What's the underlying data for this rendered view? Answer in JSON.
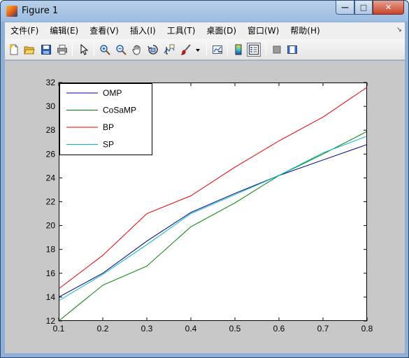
{
  "window": {
    "title": "Figure 1",
    "min_glyph": "—",
    "max_glyph": "□",
    "close_glyph": "✕"
  },
  "menubar": {
    "items": [
      {
        "label": "文件(F)"
      },
      {
        "label": "编辑(E)"
      },
      {
        "label": "查看(V)"
      },
      {
        "label": "插入(I)"
      },
      {
        "label": "工具(T)"
      },
      {
        "label": "桌面(D)"
      },
      {
        "label": "窗口(W)"
      },
      {
        "label": "帮助(H)"
      }
    ],
    "overflow_glyph": "↘"
  },
  "toolbar": {
    "buttons": [
      {
        "icon": "new-figure-icon"
      },
      {
        "icon": "open-file-icon"
      },
      {
        "icon": "save-icon"
      },
      {
        "icon": "print-icon"
      },
      {
        "icon": "edit-plot-arrow-icon"
      },
      {
        "icon": "zoom-in-icon"
      },
      {
        "icon": "zoom-out-icon"
      },
      {
        "icon": "pan-hand-icon"
      },
      {
        "icon": "rotate-3d-icon"
      },
      {
        "icon": "data-cursor-icon"
      },
      {
        "icon": "brush-icon"
      },
      {
        "icon": "link-plot-icon"
      },
      {
        "icon": "colorbar-icon"
      },
      {
        "icon": "legend-icon"
      },
      {
        "icon": "hide-plot-tools-icon"
      },
      {
        "icon": "show-plot-tools-icon"
      }
    ]
  },
  "colors": {
    "OMP": "#00008b",
    "CoSaMP": "#007f00",
    "BP": "#e60000",
    "SP": "#00b7c7",
    "figure_bg": "#c8c8c8",
    "axes_bg": "#ffffff"
  },
  "chart_data": {
    "type": "line",
    "title": "",
    "xlabel": "",
    "ylabel": "",
    "x": [
      0.1,
      0.2,
      0.3,
      0.4,
      0.5,
      0.6,
      0.7,
      0.8
    ],
    "xlim": [
      0.1,
      0.8
    ],
    "ylim": [
      12,
      32
    ],
    "xticks": [
      "0.1",
      "0.2",
      "0.3",
      "0.4",
      "0.5",
      "0.6",
      "0.7",
      "0.8"
    ],
    "yticks": [
      "12",
      "14",
      "16",
      "18",
      "20",
      "22",
      "24",
      "26",
      "28",
      "30",
      "32"
    ],
    "grid": false,
    "legend_position": "top-left",
    "series": [
      {
        "name": "OMP",
        "values": [
          14.0,
          16.0,
          18.7,
          21.1,
          22.7,
          24.2,
          25.5,
          26.8
        ]
      },
      {
        "name": "CoSaMP",
        "values": [
          12.0,
          15.0,
          16.6,
          19.9,
          21.9,
          24.2,
          26.0,
          27.9
        ]
      },
      {
        "name": "BP",
        "values": [
          14.7,
          17.5,
          21.0,
          22.5,
          24.9,
          27.1,
          29.1,
          31.6
        ]
      },
      {
        "name": "SP",
        "values": [
          13.7,
          15.9,
          18.4,
          21.0,
          22.6,
          24.2,
          26.1,
          27.5
        ]
      }
    ]
  }
}
